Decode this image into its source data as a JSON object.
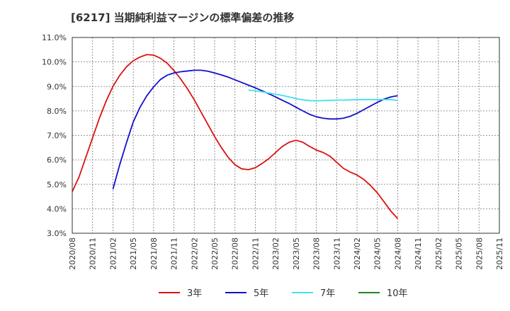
{
  "title": "[6217]  当期純利益マージンの標準偏差の推移",
  "chart_data": {
    "type": "line",
    "title": "[6217]  当期純利益マージンの標準偏差の推移",
    "xlabel": "",
    "ylabel": "",
    "ylim": [
      3.0,
      11.0
    ],
    "yticks": [
      "3.0%",
      "4.0%",
      "5.0%",
      "6.0%",
      "7.0%",
      "8.0%",
      "9.0%",
      "10.0%",
      "11.0%"
    ],
    "ytick_values": [
      3,
      4,
      5,
      6,
      7,
      8,
      9,
      10,
      11
    ],
    "x_labels": [
      "2020/08",
      "2020/11",
      "2021/02",
      "2021/05",
      "2021/08",
      "2021/11",
      "2022/02",
      "2022/05",
      "2022/08",
      "2022/11",
      "2023/02",
      "2023/05",
      "2023/08",
      "2023/11",
      "2024/02",
      "2024/05",
      "2024/08",
      "2024/11",
      "2025/02",
      "2025/05",
      "2025/08",
      "2025/11"
    ],
    "grid": true,
    "legend_position": "bottom",
    "series": [
      {
        "name": "3年",
        "color": "#dd1111",
        "points": [
          [
            0,
            4.7
          ],
          [
            1,
            5.3
          ],
          [
            2,
            6.1
          ],
          [
            3,
            6.9
          ],
          [
            4,
            7.7
          ],
          [
            5,
            8.4
          ],
          [
            6,
            9.0
          ],
          [
            7,
            9.45
          ],
          [
            8,
            9.8
          ],
          [
            9,
            10.05
          ],
          [
            10,
            10.2
          ],
          [
            11,
            10.3
          ],
          [
            12,
            10.28
          ],
          [
            13,
            10.15
          ],
          [
            14,
            9.95
          ],
          [
            15,
            9.65
          ],
          [
            16,
            9.3
          ],
          [
            17,
            8.9
          ],
          [
            18,
            8.45
          ],
          [
            19,
            7.95
          ],
          [
            20,
            7.45
          ],
          [
            21,
            6.95
          ],
          [
            22,
            6.5
          ],
          [
            23,
            6.1
          ],
          [
            24,
            5.8
          ],
          [
            25,
            5.63
          ],
          [
            26,
            5.6
          ],
          [
            27,
            5.68
          ],
          [
            28,
            5.85
          ],
          [
            29,
            6.05
          ],
          [
            30,
            6.3
          ],
          [
            31,
            6.55
          ],
          [
            32,
            6.72
          ],
          [
            33,
            6.8
          ],
          [
            34,
            6.72
          ],
          [
            35,
            6.55
          ],
          [
            36,
            6.4
          ],
          [
            37,
            6.3
          ],
          [
            38,
            6.15
          ],
          [
            39,
            5.9
          ],
          [
            40,
            5.65
          ],
          [
            41,
            5.5
          ],
          [
            42,
            5.38
          ],
          [
            43,
            5.2
          ],
          [
            44,
            4.95
          ],
          [
            45,
            4.65
          ],
          [
            46,
            4.28
          ],
          [
            47,
            3.9
          ],
          [
            48,
            3.6
          ]
        ]
      },
      {
        "name": "5年",
        "color": "#1111cc",
        "points": [
          [
            6,
            4.8
          ],
          [
            7,
            5.8
          ],
          [
            8,
            6.7
          ],
          [
            9,
            7.55
          ],
          [
            10,
            8.15
          ],
          [
            11,
            8.62
          ],
          [
            12,
            8.98
          ],
          [
            13,
            9.28
          ],
          [
            14,
            9.46
          ],
          [
            15,
            9.55
          ],
          [
            16,
            9.6
          ],
          [
            17,
            9.63
          ],
          [
            18,
            9.66
          ],
          [
            19,
            9.66
          ],
          [
            20,
            9.62
          ],
          [
            21,
            9.55
          ],
          [
            22,
            9.47
          ],
          [
            23,
            9.38
          ],
          [
            24,
            9.27
          ],
          [
            25,
            9.16
          ],
          [
            26,
            9.05
          ],
          [
            27,
            8.94
          ],
          [
            28,
            8.82
          ],
          [
            29,
            8.7
          ],
          [
            30,
            8.57
          ],
          [
            31,
            8.43
          ],
          [
            32,
            8.3
          ],
          [
            33,
            8.15
          ],
          [
            34,
            8.0
          ],
          [
            35,
            7.86
          ],
          [
            36,
            7.76
          ],
          [
            37,
            7.7
          ],
          [
            38,
            7.67
          ],
          [
            39,
            7.67
          ],
          [
            40,
            7.7
          ],
          [
            41,
            7.78
          ],
          [
            42,
            7.9
          ],
          [
            43,
            8.05
          ],
          [
            44,
            8.2
          ],
          [
            45,
            8.35
          ],
          [
            46,
            8.48
          ],
          [
            47,
            8.57
          ],
          [
            48,
            8.62
          ]
        ]
      },
      {
        "name": "7年",
        "color": "#44e0ee",
        "points": [
          [
            26,
            8.85
          ],
          [
            27,
            8.82
          ],
          [
            28,
            8.78
          ],
          [
            29,
            8.73
          ],
          [
            30,
            8.68
          ],
          [
            31,
            8.63
          ],
          [
            32,
            8.57
          ],
          [
            33,
            8.5
          ],
          [
            34,
            8.45
          ],
          [
            35,
            8.42
          ],
          [
            36,
            8.41
          ],
          [
            37,
            8.42
          ],
          [
            38,
            8.43
          ],
          [
            39,
            8.44
          ],
          [
            40,
            8.44
          ],
          [
            41,
            8.45
          ],
          [
            42,
            8.46
          ],
          [
            43,
            8.46
          ],
          [
            44,
            8.46
          ],
          [
            45,
            8.46
          ],
          [
            46,
            8.46
          ],
          [
            47,
            8.46
          ],
          [
            48,
            8.43
          ]
        ]
      },
      {
        "name": "10年",
        "color": "#228822",
        "points": []
      }
    ]
  }
}
